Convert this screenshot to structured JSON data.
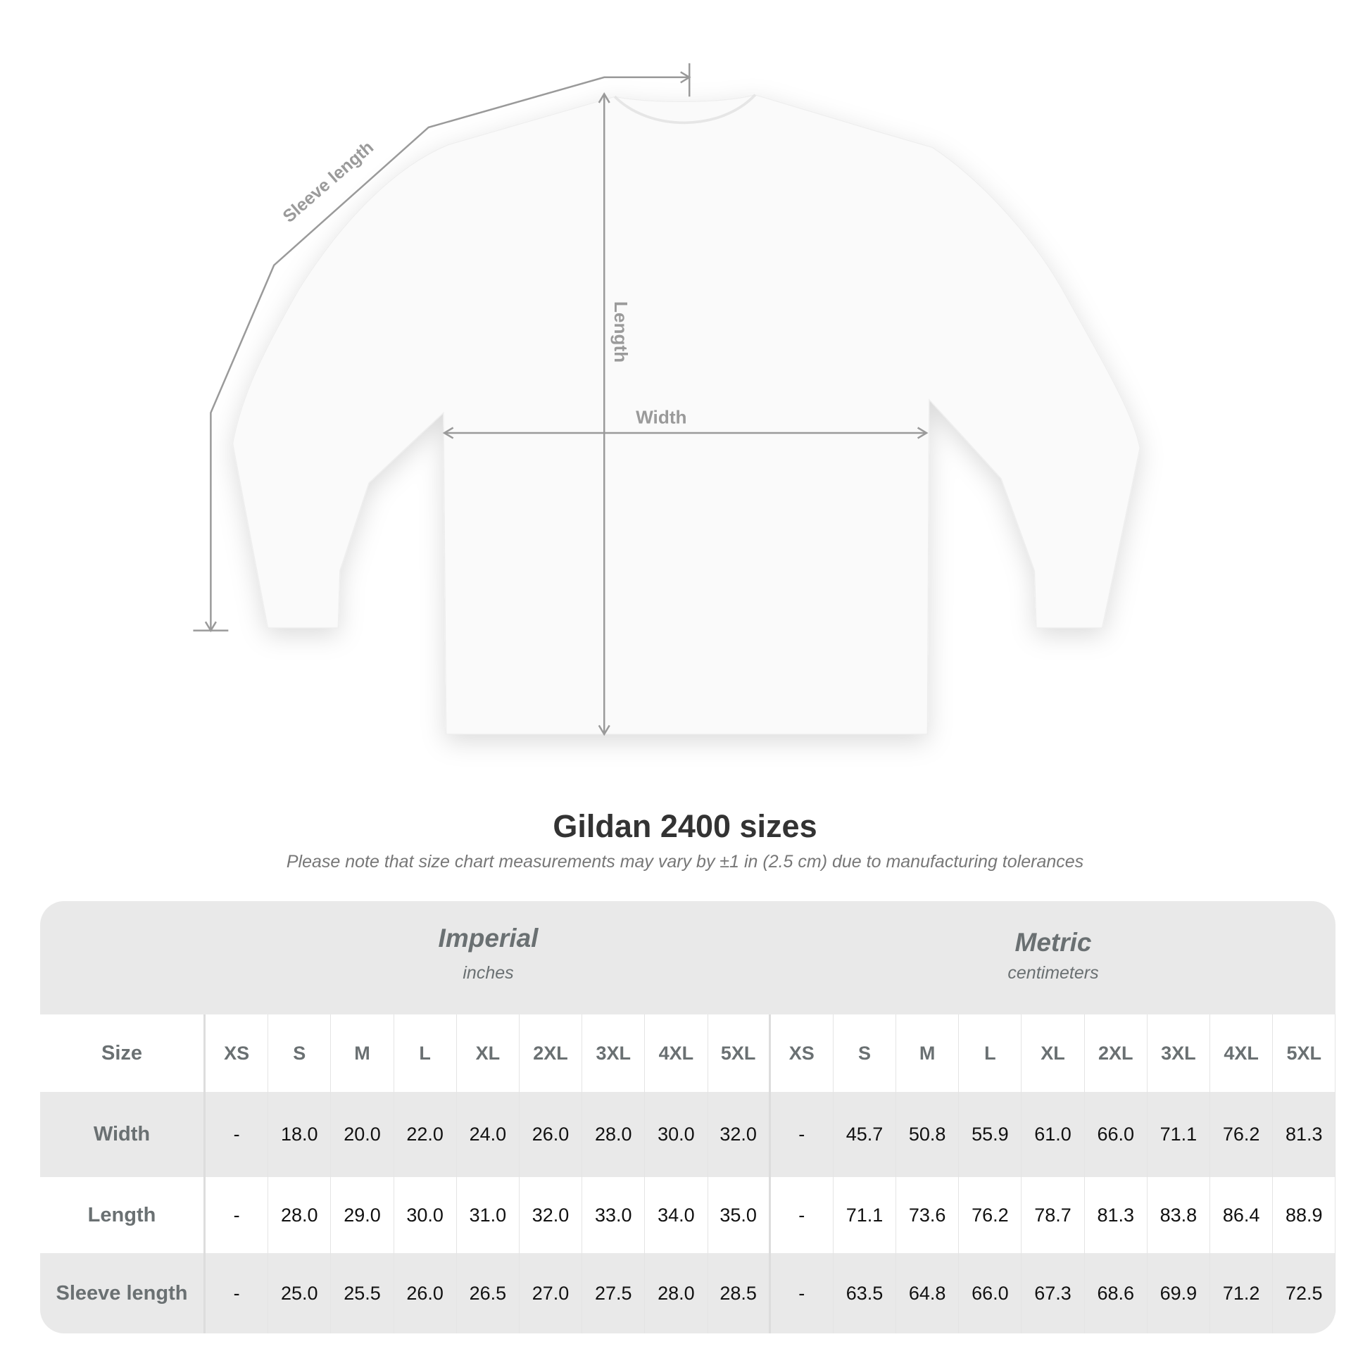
{
  "diagram": {
    "sleeve_label": "Sleeve length",
    "length_label": "Length",
    "width_label": "Width"
  },
  "title": "Gildan 2400 sizes",
  "subtitle": "Please note that size chart measurements may vary by ±1 in (2.5 cm) due to manufacturing tolerances",
  "table": {
    "imperial": {
      "name": "Imperial",
      "unit": "inches"
    },
    "metric": {
      "name": "Metric",
      "unit": "centimeters"
    },
    "size_label": "Size",
    "sizes": [
      "XS",
      "S",
      "M",
      "L",
      "XL",
      "2XL",
      "3XL",
      "4XL",
      "5XL",
      "XS",
      "S",
      "M",
      "L",
      "XL",
      "2XL",
      "3XL",
      "4XL",
      "5XL"
    ],
    "rows": [
      {
        "label": "Width",
        "values": [
          "-",
          "18.0",
          "20.0",
          "22.0",
          "24.0",
          "26.0",
          "28.0",
          "30.0",
          "32.0",
          "-",
          "45.7",
          "50.8",
          "55.9",
          "61.0",
          "66.0",
          "71.1",
          "76.2",
          "81.3"
        ]
      },
      {
        "label": "Length",
        "values": [
          "-",
          "28.0",
          "29.0",
          "30.0",
          "31.0",
          "32.0",
          "33.0",
          "34.0",
          "35.0",
          "-",
          "71.1",
          "73.6",
          "76.2",
          "78.7",
          "81.3",
          "83.8",
          "86.4",
          "88.9"
        ]
      },
      {
        "label": "Sleeve length",
        "values": [
          "-",
          "25.0",
          "25.5",
          "26.0",
          "26.5",
          "27.0",
          "27.5",
          "28.0",
          "28.5",
          "-",
          "63.5",
          "64.8",
          "66.0",
          "67.3",
          "68.6",
          "69.9",
          "71.2",
          "72.5"
        ]
      }
    ]
  },
  "colors": {
    "band": "#e9e9e9",
    "label": "#6a7072",
    "measure": "#9a9a9a"
  }
}
